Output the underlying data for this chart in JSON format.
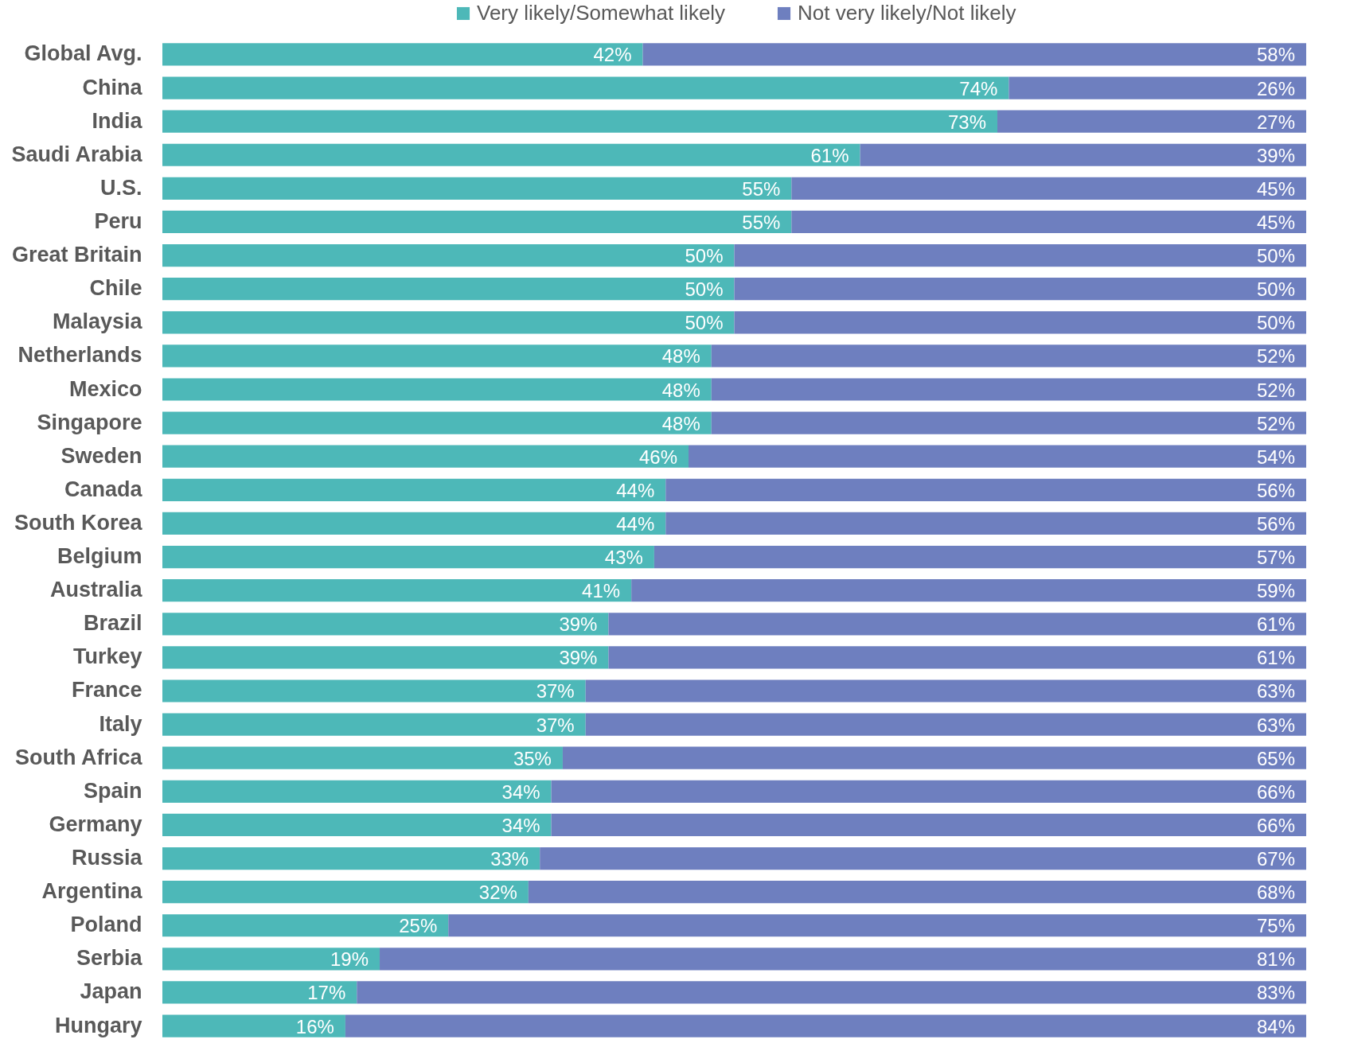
{
  "chart_data": {
    "type": "bar",
    "orientation": "horizontal",
    "stacked": true,
    "legend": "top",
    "tick_labels": "y",
    "xlim": [
      0,
      100
    ],
    "categories": [
      "Global Avg.",
      "China",
      "India",
      "Saudi Arabia",
      "U.S.",
      "Peru",
      "Great Britain",
      "Chile",
      "Malaysia",
      "Netherlands",
      "Mexico",
      "Singapore",
      "Sweden",
      "Canada",
      "South Korea",
      "Belgium",
      "Australia",
      "Brazil",
      "Turkey",
      "France",
      "Italy",
      "South Africa",
      "Spain",
      "Germany",
      "Russia",
      "Argentina",
      "Poland",
      "Serbia",
      "Japan",
      "Hungary"
    ],
    "series": [
      {
        "name": "Very likely/Somewhat likely",
        "color": "#4db8b8",
        "values": [
          42,
          74,
          73,
          61,
          55,
          55,
          50,
          50,
          50,
          48,
          48,
          48,
          46,
          44,
          44,
          43,
          41,
          39,
          39,
          37,
          37,
          35,
          34,
          34,
          33,
          32,
          25,
          19,
          17,
          16
        ],
        "value_labels": [
          "42%",
          "74%",
          "73%",
          "61%",
          "55%",
          "55%",
          "50%",
          "50%",
          "50%",
          "48%",
          "48%",
          "48%",
          "46%",
          "44%",
          "44%",
          "43%",
          "41%",
          "39%",
          "39%",
          "37%",
          "37%",
          "35%",
          "34%",
          "34%",
          "33%",
          "32%",
          "25%",
          "19%",
          "17%",
          "16%"
        ]
      },
      {
        "name": "Not very likely/Not likely",
        "color": "#6e7fbf",
        "values": [
          58,
          26,
          27,
          39,
          45,
          45,
          50,
          50,
          50,
          52,
          52,
          52,
          54,
          56,
          56,
          57,
          59,
          61,
          61,
          63,
          63,
          65,
          66,
          66,
          67,
          68,
          75,
          81,
          83,
          84
        ],
        "value_labels": [
          "58%",
          "26%",
          "27%",
          "39%",
          "45%",
          "45%",
          "50%",
          "50%",
          "50%",
          "52%",
          "52%",
          "52%",
          "54%",
          "56%",
          "56%",
          "57%",
          "59%",
          "61%",
          "61%",
          "63%",
          "63%",
          "65%",
          "66%",
          "66%",
          "67%",
          "68%",
          "75%",
          "81%",
          "83%",
          "84%"
        ]
      }
    ]
  }
}
